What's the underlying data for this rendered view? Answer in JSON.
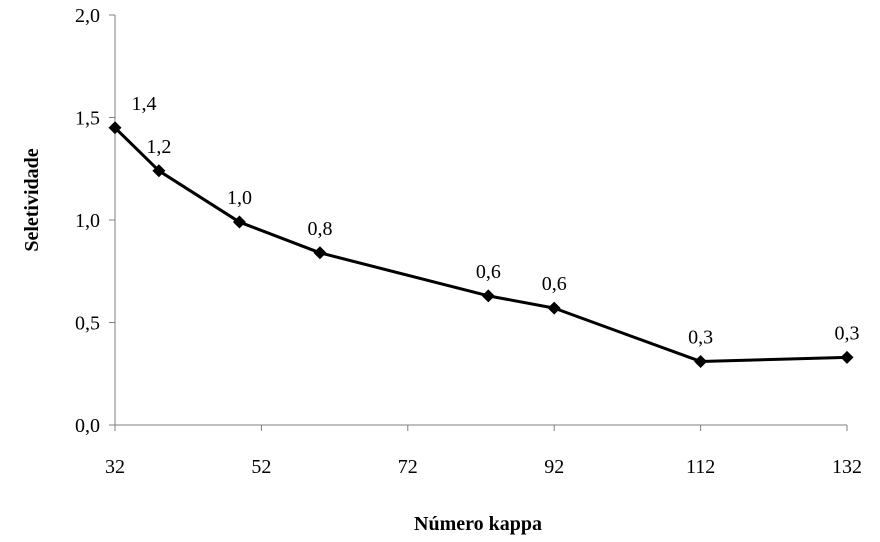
{
  "chart_data": {
    "type": "line",
    "xlabel": "Número kappa",
    "ylabel": "Seletividade",
    "xlim": [
      32,
      132
    ],
    "ylim": [
      0,
      2
    ],
    "x_ticks": [
      32,
      52,
      72,
      92,
      112,
      132
    ],
    "x_tick_labels": [
      "32",
      "52",
      "72",
      "92",
      "112",
      "132"
    ],
    "y_ticks": [
      0,
      0.5,
      1,
      1.5,
      2
    ],
    "y_tick_labels": [
      "0,0",
      "0,5",
      "1,0",
      "1,5",
      "2,0"
    ],
    "grid": false,
    "legend": "none",
    "series": [
      {
        "color": "#000000",
        "marker": "diamond",
        "x": [
          32,
          38,
          49,
          60,
          83,
          92,
          112,
          132
        ],
        "y": [
          1.45,
          1.24,
          0.99,
          0.84,
          0.63,
          0.57,
          0.31,
          0.33
        ],
        "labels": [
          "1,4",
          "1,2",
          "1,0",
          "0,8",
          "0,6",
          "0,6",
          "0,3",
          "0,3"
        ]
      }
    ]
  }
}
